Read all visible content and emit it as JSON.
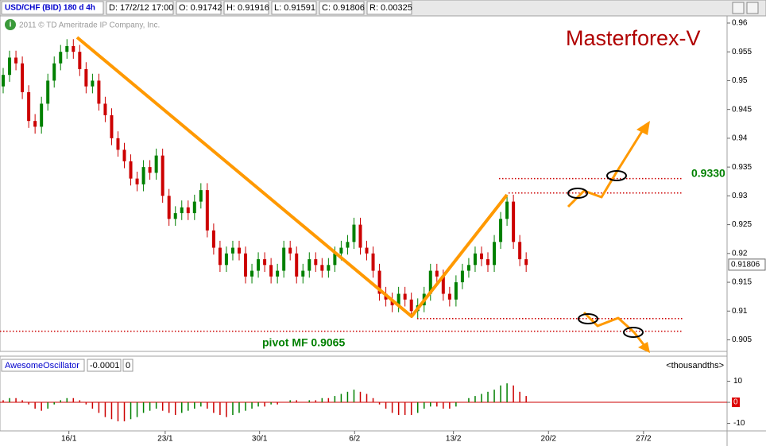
{
  "header": {
    "symbol": "USD/CHF (BID) 180 d 4h",
    "date": "D: 17/2/12 17:00",
    "open": "O: 0.91742",
    "high": "H: 0.91916",
    "low": "L: 0.91591",
    "close": "C: 0.91806",
    "range": "R: 0.00325"
  },
  "watermark": "2011 © TD Ameritrade IP Company, Inc.",
  "chart_data": [
    {
      "type": "candlestick",
      "title": "Masterforex-V",
      "open": [
        0.949,
        0.951,
        0.954,
        0.953,
        0.948,
        0.943,
        0.942,
        0.946,
        0.95,
        0.953,
        0.955,
        0.956,
        0.955,
        0.952,
        0.949,
        0.95,
        0.946,
        0.944,
        0.94,
        0.938,
        0.936,
        0.933,
        0.932,
        0.935,
        0.934,
        0.937,
        0.93,
        0.926,
        0.927,
        0.928,
        0.927,
        0.929,
        0.931,
        0.924,
        0.921,
        0.918,
        0.92,
        0.921,
        0.92,
        0.916,
        0.917,
        0.919,
        0.918,
        0.916,
        0.917,
        0.921,
        0.92,
        0.916,
        0.917,
        0.919,
        0.918,
        0.917,
        0.918,
        0.92,
        0.921,
        0.922,
        0.925,
        0.921,
        0.92,
        0.917,
        0.913,
        0.912,
        0.911,
        0.913,
        0.912,
        0.91,
        0.911,
        0.913,
        0.917,
        0.916,
        0.913,
        0.912,
        0.915,
        0.917,
        0.918,
        0.92,
        0.919,
        0.918,
        0.922,
        0.926,
        0.929,
        0.922,
        0.919
      ],
      "high": [
        0.9522,
        0.9552,
        0.9552,
        0.9542,
        0.9492,
        0.9442,
        0.9472,
        0.9512,
        0.9542,
        0.9562,
        0.9572,
        0.9572,
        0.9562,
        0.9532,
        0.9512,
        0.9512,
        0.9472,
        0.9452,
        0.9412,
        0.9392,
        0.9372,
        0.9342,
        0.9362,
        0.9362,
        0.9382,
        0.9382,
        0.9312,
        0.9282,
        0.9292,
        0.9292,
        0.9302,
        0.9322,
        0.9322,
        0.9252,
        0.9222,
        0.9212,
        0.9222,
        0.9222,
        0.9212,
        0.9182,
        0.9202,
        0.9202,
        0.9192,
        0.9182,
        0.9222,
        0.9222,
        0.9212,
        0.9182,
        0.9202,
        0.9202,
        0.9192,
        0.9192,
        0.9212,
        0.9222,
        0.9232,
        0.9262,
        0.9262,
        0.9222,
        0.9212,
        0.9182,
        0.9142,
        0.9132,
        0.9142,
        0.9142,
        0.9132,
        0.9122,
        0.9142,
        0.9182,
        0.9182,
        0.9172,
        0.9142,
        0.9162,
        0.9182,
        0.9192,
        0.9212,
        0.9212,
        0.9202,
        0.9232,
        0.9272,
        0.9302,
        0.9302,
        0.9232,
        0.9202
      ],
      "low": [
        0.9478,
        0.9498,
        0.9518,
        0.9468,
        0.9418,
        0.9408,
        0.9408,
        0.9448,
        0.9488,
        0.9518,
        0.9538,
        0.9538,
        0.9508,
        0.9478,
        0.9478,
        0.9448,
        0.9428,
        0.9388,
        0.9368,
        0.9348,
        0.9318,
        0.9308,
        0.9308,
        0.9328,
        0.9328,
        0.9288,
        0.9248,
        0.9248,
        0.9258,
        0.9258,
        0.9258,
        0.9278,
        0.9228,
        0.9198,
        0.9168,
        0.9168,
        0.9188,
        0.9188,
        0.9148,
        0.9148,
        0.9158,
        0.9168,
        0.9148,
        0.9148,
        0.9158,
        0.9188,
        0.9148,
        0.9148,
        0.9158,
        0.9168,
        0.9158,
        0.9158,
        0.9168,
        0.9188,
        0.9198,
        0.9208,
        0.9198,
        0.9188,
        0.9158,
        0.9118,
        0.9108,
        0.9098,
        0.9098,
        0.9108,
        0.9088,
        0.9088,
        0.9098,
        0.9118,
        0.9148,
        0.9118,
        0.9108,
        0.9108,
        0.9138,
        0.9158,
        0.9168,
        0.9178,
        0.9168,
        0.9168,
        0.9208,
        0.9248,
        0.9208,
        0.9178,
        0.9168
      ],
      "close": [
        0.951,
        0.954,
        0.953,
        0.948,
        0.943,
        0.942,
        0.946,
        0.95,
        0.953,
        0.955,
        0.956,
        0.955,
        0.952,
        0.949,
        0.95,
        0.946,
        0.944,
        0.94,
        0.938,
        0.936,
        0.933,
        0.932,
        0.935,
        0.934,
        0.937,
        0.93,
        0.926,
        0.927,
        0.928,
        0.927,
        0.929,
        0.931,
        0.924,
        0.921,
        0.918,
        0.92,
        0.921,
        0.92,
        0.916,
        0.917,
        0.919,
        0.918,
        0.916,
        0.917,
        0.921,
        0.92,
        0.916,
        0.917,
        0.919,
        0.918,
        0.917,
        0.918,
        0.92,
        0.921,
        0.922,
        0.925,
        0.921,
        0.92,
        0.917,
        0.913,
        0.912,
        0.911,
        0.913,
        0.912,
        0.91,
        0.911,
        0.913,
        0.917,
        0.916,
        0.913,
        0.912,
        0.915,
        0.917,
        0.918,
        0.92,
        0.919,
        0.918,
        0.922,
        0.926,
        0.929,
        0.922,
        0.919,
        0.918
      ],
      "up_color": "#008000",
      "down_color": "#cc0000",
      "xlim": [
        -0.5,
        113.5
      ],
      "xticks": [
        {
          "value": 10.3,
          "label": "16/1"
        },
        {
          "value": 25.4,
          "label": "23/1"
        },
        {
          "value": 40.2,
          "label": "30/1"
        },
        {
          "value": 55.1,
          "label": "6/2"
        },
        {
          "value": 70.6,
          "label": "13/2"
        },
        {
          "value": 85.5,
          "label": "20/2"
        },
        {
          "value": 100.4,
          "label": "27/2"
        }
      ],
      "ylim": [
        0.903,
        0.96124
      ],
      "yticks": [
        0.96,
        0.955,
        0.95,
        0.945,
        0.94,
        0.935,
        0.93,
        0.925,
        0.92,
        0.915,
        0.91,
        0.905
      ],
      "levels": [
        0.933,
        0.9305,
        0.9087,
        0.9065
      ],
      "level_label": "0.9330",
      "pivot_label": "pivot MF 0.9065",
      "last_price": 0.91806,
      "last_price_label": "0.91806"
    },
    {
      "type": "bar",
      "title": "AwesomeOscillator",
      "value_label": "-0.0001",
      "zero_label": "0",
      "unit_label": "<thousandths>",
      "values": [
        1,
        2,
        2,
        1,
        -1,
        -3,
        -4,
        -3,
        -1,
        1,
        2,
        2,
        1,
        -1,
        -3,
        -5,
        -7,
        -8,
        -9,
        -9,
        -8,
        -7,
        -5,
        -4,
        -3,
        -4,
        -5,
        -6,
        -5,
        -4,
        -3,
        -2,
        -3,
        -5,
        -6,
        -7,
        -6,
        -5,
        -4,
        -3,
        -2,
        -2,
        -1,
        -1,
        0,
        1,
        1,
        0,
        1,
        1,
        2,
        2,
        3,
        4,
        5,
        6,
        5,
        4,
        2,
        -1,
        -3,
        -5,
        -6,
        -6,
        -6,
        -5,
        -3,
        -2,
        -2,
        -3,
        -3,
        -2,
        0,
        2,
        3,
        4,
        5,
        6,
        8,
        9,
        8,
        5,
        3
      ],
      "ylim": [
        -12.8,
        13.6
      ],
      "yticks": [
        10,
        0,
        -10
      ]
    }
  ]
}
